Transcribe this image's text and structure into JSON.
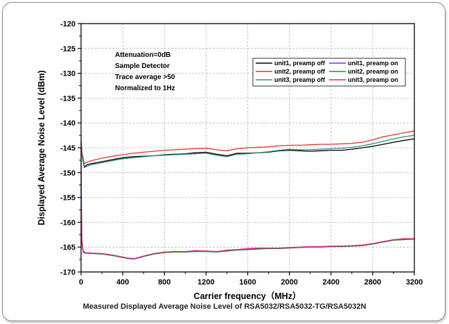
{
  "caption": "Measured Displayed Average Noise Level of RSA5032/RSA5032-TG/RSA5032N",
  "chart_data": {
    "type": "line",
    "title": "",
    "xlabel": "Carrier frequency（MHz）",
    "ylabel": "Displayed Average Noise Level (dBm)",
    "xlim": [
      0,
      3200
    ],
    "ylim": [
      -170,
      -120
    ],
    "xticks": [
      0,
      400,
      800,
      1200,
      1600,
      2000,
      2400,
      2800,
      3200
    ],
    "yticks": [
      -120,
      -125,
      -130,
      -135,
      -140,
      -145,
      -150,
      -155,
      -160,
      -165,
      -170
    ],
    "grid": true,
    "legend_position": "top-right",
    "annotations": [
      "Attenuation=0dB",
      "Sample Detector",
      "Trace average >50",
      "Normalized to 1Hz"
    ],
    "series": [
      {
        "name": "unit1, preamp off",
        "color": "#000000",
        "points": [
          [
            0,
            -144
          ],
          [
            10,
            -146.5
          ],
          [
            30,
            -148.8
          ],
          [
            60,
            -148.4
          ],
          [
            100,
            -148.2
          ],
          [
            200,
            -147.8
          ],
          [
            300,
            -147.4
          ],
          [
            400,
            -147.0
          ],
          [
            500,
            -146.8
          ],
          [
            600,
            -146.7
          ],
          [
            700,
            -146.6
          ],
          [
            800,
            -146.4
          ],
          [
            900,
            -146.3
          ],
          [
            1000,
            -146.2
          ],
          [
            1100,
            -146.0
          ],
          [
            1200,
            -145.9
          ],
          [
            1300,
            -146.3
          ],
          [
            1400,
            -146.6
          ],
          [
            1500,
            -146.1
          ],
          [
            1600,
            -146.1
          ],
          [
            1700,
            -146.0
          ],
          [
            1800,
            -145.9
          ],
          [
            1900,
            -145.6
          ],
          [
            2000,
            -145.5
          ],
          [
            2100,
            -145.6
          ],
          [
            2200,
            -145.7
          ],
          [
            2300,
            -145.6
          ],
          [
            2400,
            -145.5
          ],
          [
            2500,
            -145.5
          ],
          [
            2600,
            -145.3
          ],
          [
            2700,
            -145.0
          ],
          [
            2800,
            -144.7
          ],
          [
            2900,
            -144.3
          ],
          [
            3000,
            -143.9
          ],
          [
            3100,
            -143.5
          ],
          [
            3200,
            -143.2
          ]
        ]
      },
      {
        "name": "unit2, preamp off",
        "color": "#e8302c",
        "points": [
          [
            0,
            -143.5
          ],
          [
            10,
            -146
          ],
          [
            30,
            -148.2
          ],
          [
            60,
            -147.9
          ],
          [
            100,
            -147.6
          ],
          [
            200,
            -147.1
          ],
          [
            300,
            -146.7
          ],
          [
            400,
            -146.4
          ],
          [
            500,
            -146.1
          ],
          [
            600,
            -145.9
          ],
          [
            700,
            -145.7
          ],
          [
            800,
            -145.5
          ],
          [
            900,
            -145.4
          ],
          [
            1000,
            -145.3
          ],
          [
            1100,
            -145.2
          ],
          [
            1200,
            -145.1
          ],
          [
            1300,
            -145.4
          ],
          [
            1400,
            -145.6
          ],
          [
            1500,
            -145.2
          ],
          [
            1600,
            -145.0
          ],
          [
            1700,
            -144.9
          ],
          [
            1800,
            -144.8
          ],
          [
            1900,
            -144.6
          ],
          [
            2000,
            -144.5
          ],
          [
            2100,
            -144.5
          ],
          [
            2200,
            -144.4
          ],
          [
            2300,
            -144.3
          ],
          [
            2400,
            -144.3
          ],
          [
            2500,
            -144.2
          ],
          [
            2600,
            -144.1
          ],
          [
            2700,
            -143.9
          ],
          [
            2800,
            -143.4
          ],
          [
            2900,
            -142.8
          ],
          [
            3000,
            -142.4
          ],
          [
            3100,
            -142.0
          ],
          [
            3200,
            -141.6
          ]
        ]
      },
      {
        "name": "unit3, preamp off",
        "color": "#2a8f86",
        "points": [
          [
            0,
            -144.2
          ],
          [
            10,
            -146.8
          ],
          [
            30,
            -149.0
          ],
          [
            60,
            -148.7
          ],
          [
            100,
            -148.4
          ],
          [
            200,
            -148.0
          ],
          [
            300,
            -147.6
          ],
          [
            400,
            -147.2
          ],
          [
            500,
            -147.0
          ],
          [
            600,
            -146.8
          ],
          [
            700,
            -146.6
          ],
          [
            800,
            -146.5
          ],
          [
            900,
            -146.4
          ],
          [
            1000,
            -146.3
          ],
          [
            1100,
            -146.2
          ],
          [
            1200,
            -146.1
          ],
          [
            1300,
            -146.5
          ],
          [
            1400,
            -146.8
          ],
          [
            1500,
            -146.3
          ],
          [
            1600,
            -146.2
          ],
          [
            1700,
            -146.0
          ],
          [
            1800,
            -145.8
          ],
          [
            1900,
            -145.5
          ],
          [
            2000,
            -145.3
          ],
          [
            2100,
            -145.4
          ],
          [
            2200,
            -145.4
          ],
          [
            2300,
            -145.3
          ],
          [
            2400,
            -145.2
          ],
          [
            2500,
            -145.1
          ],
          [
            2600,
            -144.9
          ],
          [
            2700,
            -144.6
          ],
          [
            2800,
            -144.2
          ],
          [
            2900,
            -143.7
          ],
          [
            3000,
            -143.2
          ],
          [
            3100,
            -142.8
          ],
          [
            3200,
            -142.5
          ]
        ]
      },
      {
        "name": "unit1, preamp on",
        "color": "#7b2ff0",
        "points": [
          [
            0,
            -161.5
          ],
          [
            8,
            -164
          ],
          [
            20,
            -165.8
          ],
          [
            40,
            -166.1
          ],
          [
            100,
            -166.2
          ],
          [
            200,
            -166.3
          ],
          [
            300,
            -166.6
          ],
          [
            400,
            -167.0
          ],
          [
            450,
            -167.2
          ],
          [
            500,
            -167.3
          ],
          [
            550,
            -167.1
          ],
          [
            600,
            -166.8
          ],
          [
            700,
            -166.3
          ],
          [
            800,
            -166.0
          ],
          [
            900,
            -165.9
          ],
          [
            1000,
            -165.9
          ],
          [
            1100,
            -165.8
          ],
          [
            1200,
            -165.8
          ],
          [
            1300,
            -165.9
          ],
          [
            1400,
            -165.7
          ],
          [
            1500,
            -165.5
          ],
          [
            1600,
            -165.4
          ],
          [
            1700,
            -165.3
          ],
          [
            1800,
            -165.2
          ],
          [
            1900,
            -165.2
          ],
          [
            2000,
            -165.1
          ],
          [
            2100,
            -165.0
          ],
          [
            2200,
            -164.9
          ],
          [
            2300,
            -164.9
          ],
          [
            2400,
            -164.8
          ],
          [
            2500,
            -164.8
          ],
          [
            2600,
            -164.7
          ],
          [
            2700,
            -164.6
          ],
          [
            2800,
            -164.3
          ],
          [
            2900,
            -163.9
          ],
          [
            3000,
            -163.5
          ],
          [
            3100,
            -163.4
          ],
          [
            3200,
            -163.3
          ]
        ]
      },
      {
        "name": "unit2, preamp on",
        "color": "#2e8b2e",
        "points": [
          [
            0,
            -162
          ],
          [
            8,
            -164.5
          ],
          [
            20,
            -166.0
          ],
          [
            40,
            -166.2
          ],
          [
            100,
            -166.3
          ],
          [
            200,
            -166.4
          ],
          [
            300,
            -166.7
          ],
          [
            400,
            -167.1
          ],
          [
            450,
            -167.3
          ],
          [
            500,
            -167.4
          ],
          [
            550,
            -167.2
          ],
          [
            600,
            -166.9
          ],
          [
            700,
            -166.4
          ],
          [
            800,
            -166.1
          ],
          [
            900,
            -166.0
          ],
          [
            1000,
            -166.0
          ],
          [
            1100,
            -165.9
          ],
          [
            1200,
            -165.9
          ],
          [
            1300,
            -166.0
          ],
          [
            1400,
            -165.8
          ],
          [
            1500,
            -165.6
          ],
          [
            1600,
            -165.5
          ],
          [
            1700,
            -165.4
          ],
          [
            1800,
            -165.3
          ],
          [
            1900,
            -165.3
          ],
          [
            2000,
            -165.2
          ],
          [
            2100,
            -165.1
          ],
          [
            2200,
            -165.0
          ],
          [
            2300,
            -165.0
          ],
          [
            2400,
            -164.9
          ],
          [
            2500,
            -164.9
          ],
          [
            2600,
            -164.8
          ],
          [
            2700,
            -164.7
          ],
          [
            2800,
            -164.4
          ],
          [
            2900,
            -164.0
          ],
          [
            3000,
            -163.6
          ],
          [
            3100,
            -163.5
          ],
          [
            3200,
            -163.4
          ]
        ]
      },
      {
        "name": "unit3, preamp on",
        "color": "#e0208a",
        "points": [
          [
            0,
            -145
          ],
          [
            3,
            -155
          ],
          [
            8,
            -163.5
          ],
          [
            20,
            -165.9
          ],
          [
            40,
            -166.2
          ],
          [
            100,
            -166.2
          ],
          [
            200,
            -166.3
          ],
          [
            300,
            -166.6
          ],
          [
            400,
            -167.0
          ],
          [
            450,
            -167.2
          ],
          [
            500,
            -167.4
          ],
          [
            550,
            -167.1
          ],
          [
            600,
            -166.8
          ],
          [
            700,
            -166.3
          ],
          [
            800,
            -166.0
          ],
          [
            900,
            -165.9
          ],
          [
            1000,
            -165.9
          ],
          [
            1100,
            -165.7
          ],
          [
            1200,
            -165.8
          ],
          [
            1300,
            -165.9
          ],
          [
            1400,
            -165.6
          ],
          [
            1500,
            -165.5
          ],
          [
            1600,
            -165.3
          ],
          [
            1700,
            -165.2
          ],
          [
            1800,
            -165.2
          ],
          [
            1900,
            -165.2
          ],
          [
            2000,
            -165.1
          ],
          [
            2100,
            -165.0
          ],
          [
            2200,
            -164.9
          ],
          [
            2300,
            -164.9
          ],
          [
            2400,
            -164.8
          ],
          [
            2500,
            -164.8
          ],
          [
            2600,
            -164.7
          ],
          [
            2700,
            -164.6
          ],
          [
            2800,
            -164.3
          ],
          [
            2900,
            -163.9
          ],
          [
            3000,
            -163.5
          ],
          [
            3100,
            -163.3
          ],
          [
            3200,
            -163.3
          ]
        ]
      }
    ]
  }
}
